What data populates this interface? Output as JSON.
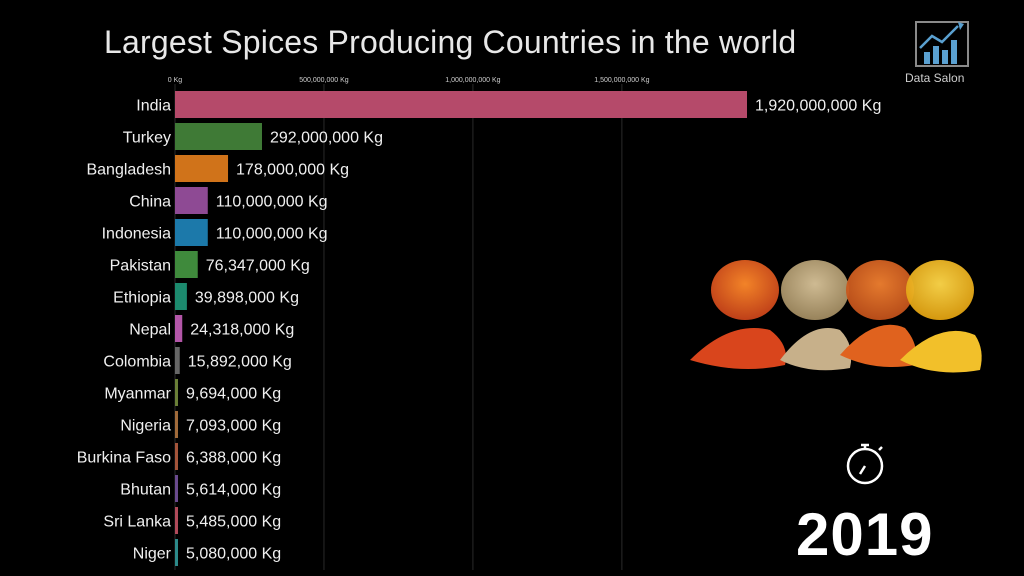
{
  "title": "Largest Spices Producing Countries in the world",
  "brand": {
    "name": "Data Salon",
    "icon": "chart-logo-icon"
  },
  "year": "2019",
  "timer_icon": "stopwatch-icon",
  "spices_image": "spice-jars-illustration",
  "chart_data": {
    "type": "bar",
    "orientation": "horizontal",
    "title": "Largest Spices Producing Countries in the world",
    "x_ticks": [
      {
        "value": 0,
        "label": "0 Kg"
      },
      {
        "value": 500000000,
        "label": "500,000,000 Kg"
      },
      {
        "value": 1000000000,
        "label": "1,000,000,000 Kg"
      },
      {
        "value": 1500000000,
        "label": "1,500,000,000 Kg"
      }
    ],
    "grid": true,
    "categories": [
      "India",
      "Turkey",
      "Bangladesh",
      "China",
      "Indonesia",
      "Pakistan",
      "Ethiopia",
      "Nepal",
      "Colombia",
      "Myanmar",
      "Nigeria",
      "Burkina Faso",
      "Bhutan",
      "Sri Lanka",
      "Niger"
    ],
    "values": [
      1920000000,
      292000000,
      178000000,
      110000000,
      110000000,
      76347000,
      39898000,
      24318000,
      15892000,
      9694000,
      7093000,
      6388000,
      5614000,
      5485000,
      5080000
    ],
    "value_labels": [
      "1,920,000,000 Kg",
      "292,000,000 Kg",
      "178,000,000 Kg",
      "110,000,000 Kg",
      "110,000,000 Kg",
      "76,347,000 Kg",
      "39,898,000 Kg",
      "24,318,000 Kg",
      "15,892,000 Kg",
      "9,694,000 Kg",
      "7,093,000 Kg",
      "6,388,000 Kg",
      "5,614,000 Kg",
      "5,485,000 Kg",
      "5,080,000 Kg"
    ],
    "colors": [
      "#b54a6a",
      "#3f7a36",
      "#d0731a",
      "#8e4a94",
      "#1c79aa",
      "#3f8a3c",
      "#1c8a6e",
      "#b356a8",
      "#666666",
      "#6a7f37",
      "#a06a3a",
      "#a4543a",
      "#6a4a8e",
      "#b04a5a",
      "#2c8a8a"
    ]
  }
}
